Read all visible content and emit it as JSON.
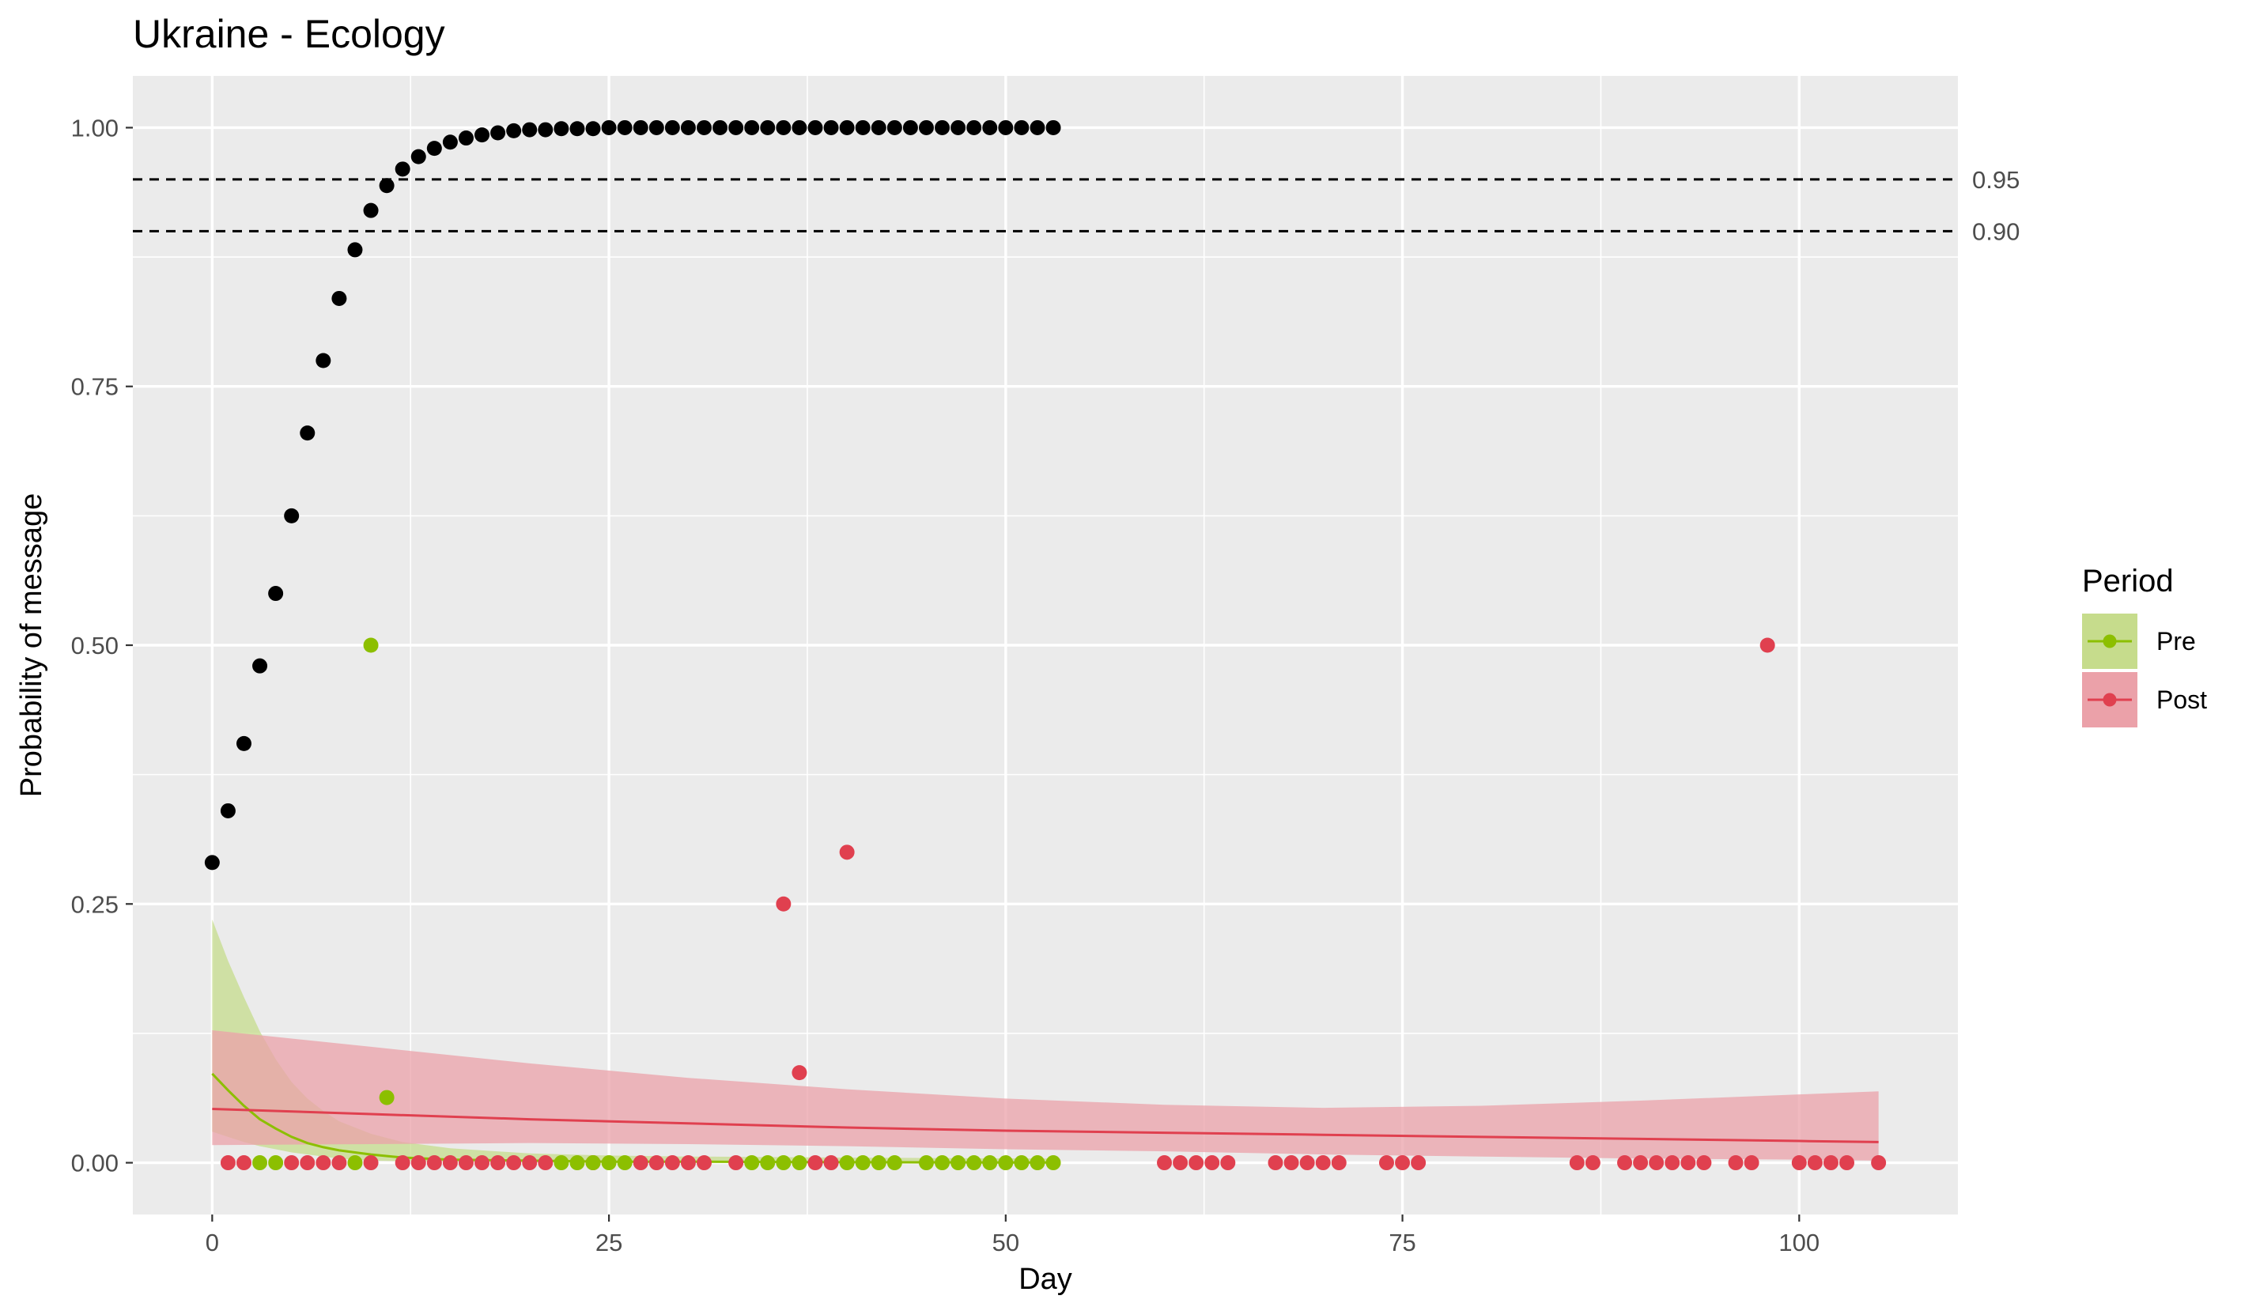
{
  "chart_data": {
    "type": "scatter",
    "title": "Ukraine - Ecology",
    "xlabel": "Day",
    "ylabel": "Probability of message",
    "xlim": [
      -5,
      110
    ],
    "ylim": [
      -0.05,
      1.05
    ],
    "x_ticks": [
      0,
      25,
      50,
      75,
      100
    ],
    "x_tick_labels": [
      "0",
      "25",
      "50",
      "75",
      "100"
    ],
    "y_ticks": [
      0,
      0.25,
      0.5,
      0.75,
      1.0
    ],
    "y_tick_labels": [
      "0.00",
      "0.25",
      "0.50",
      "0.75",
      "1.00"
    ],
    "grid": true,
    "colors": {
      "panel": "#ebebeb",
      "grid": "#ffffff",
      "cumulative": "#000000",
      "pre": "#8cbf00",
      "pre_band": "#c6dc8c",
      "post": "#e0404f",
      "post_band": "#eba1a9"
    },
    "reference_lines": [
      {
        "y": 0.95,
        "label": "0.95"
      },
      {
        "y": 0.9,
        "label": "0.90"
      }
    ],
    "legend": {
      "title": "Period",
      "position": "right",
      "entries": [
        {
          "label": "Pre",
          "color_key": "pre"
        },
        {
          "label": "Post",
          "color_key": "post"
        }
      ]
    },
    "series": [
      {
        "kind": "cumulative-points",
        "x": [
          0,
          1,
          2,
          3,
          4,
          5,
          6,
          7,
          8,
          9,
          10,
          11,
          12,
          13,
          14,
          15,
          16,
          17,
          18,
          19,
          20,
          21,
          22,
          23,
          24,
          25,
          26,
          27,
          28,
          29,
          30,
          31,
          32,
          33,
          34,
          35,
          36,
          37,
          38,
          39,
          40,
          41,
          42,
          43,
          44,
          45,
          46,
          47,
          48,
          49,
          50,
          51,
          52,
          53
        ],
        "y": [
          0.29,
          0.34,
          0.405,
          0.48,
          0.55,
          0.625,
          0.705,
          0.775,
          0.835,
          0.882,
          0.92,
          0.944,
          0.96,
          0.972,
          0.98,
          0.986,
          0.99,
          0.993,
          0.995,
          0.997,
          0.998,
          0.998,
          0.999,
          0.999,
          0.999,
          1,
          1,
          1,
          1,
          1,
          1,
          1,
          1,
          1,
          1,
          1,
          1,
          1,
          1,
          1,
          1,
          1,
          1,
          1,
          1,
          1,
          1,
          1,
          1,
          1,
          1,
          1,
          1,
          1
        ]
      },
      {
        "name": "Pre",
        "kind": "points",
        "color_key": "pre",
        "x": [
          3,
          4,
          9,
          10,
          11,
          22,
          23,
          24,
          25,
          26,
          34,
          35,
          36,
          37,
          40,
          41,
          42,
          43,
          45,
          46,
          47,
          48,
          49,
          50,
          51,
          52,
          53
        ],
        "y": [
          0,
          0,
          0,
          0.5,
          0.063,
          0,
          0,
          0,
          0,
          0,
          0,
          0,
          0,
          0,
          0,
          0,
          0,
          0,
          0,
          0,
          0,
          0,
          0,
          0,
          0,
          0,
          0
        ]
      },
      {
        "name": "Post",
        "kind": "points",
        "color_key": "post",
        "x": [
          1,
          2,
          5,
          6,
          7,
          8,
          10,
          12,
          13,
          14,
          15,
          16,
          17,
          18,
          19,
          20,
          21,
          24,
          27,
          28,
          29,
          30,
          31,
          33,
          36,
          37,
          38,
          39,
          40,
          60,
          61,
          62,
          63,
          64,
          67,
          68,
          69,
          70,
          71,
          74,
          75,
          76,
          86,
          87,
          89,
          90,
          91,
          92,
          93,
          94,
          96,
          97,
          98,
          100,
          101,
          102,
          103,
          105
        ],
        "y": [
          0,
          0,
          0,
          0,
          0,
          0,
          0,
          0,
          0,
          0,
          0,
          0,
          0,
          0,
          0,
          0,
          0,
          0,
          0,
          0,
          0,
          0,
          0,
          0,
          0.25,
          0.087,
          0,
          0,
          0.3,
          0,
          0,
          0,
          0,
          0,
          0,
          0,
          0,
          0,
          0,
          0,
          0,
          0,
          0,
          0,
          0,
          0,
          0,
          0,
          0,
          0,
          0,
          0,
          0.5,
          0,
          0,
          0,
          0,
          0
        ]
      },
      {
        "name": "Pre",
        "kind": "fit",
        "color_key": "pre",
        "band_key": "pre_band",
        "x": [
          0,
          1,
          2,
          3,
          4,
          5,
          6,
          7,
          8,
          10,
          12,
          15,
          20,
          25,
          30,
          40,
          53
        ],
        "y": [
          0.086,
          0.07,
          0.055,
          0.042,
          0.033,
          0.025,
          0.019,
          0.015,
          0.012,
          0.008,
          0.005,
          0.003,
          0.002,
          0.001,
          0.001,
          0.0005,
          0.0002
        ],
        "lower": [
          0.03,
          0.025,
          0.02,
          0.016,
          0.013,
          0.01,
          0.008,
          0.006,
          0.004,
          0.002,
          0.0015,
          0.001,
          0.0005,
          0.0003,
          0.0002,
          0.0001,
          0
        ],
        "upper": [
          0.235,
          0.195,
          0.16,
          0.127,
          0.1,
          0.078,
          0.062,
          0.05,
          0.04,
          0.028,
          0.02,
          0.014,
          0.009,
          0.007,
          0.006,
          0.005,
          0.004
        ]
      },
      {
        "name": "Post",
        "kind": "fit",
        "color_key": "post",
        "band_key": "post_band",
        "x": [
          0,
          10,
          20,
          30,
          40,
          50,
          60,
          70,
          80,
          90,
          100,
          105
        ],
        "y": [
          0.052,
          0.047,
          0.042,
          0.038,
          0.034,
          0.031,
          0.029,
          0.027,
          0.025,
          0.023,
          0.021,
          0.02
        ],
        "lower": [
          0.017,
          0.018,
          0.019,
          0.018,
          0.016,
          0.013,
          0.011,
          0.008,
          0.006,
          0.004,
          0.003,
          0.002
        ],
        "upper": [
          0.128,
          0.112,
          0.096,
          0.082,
          0.071,
          0.062,
          0.056,
          0.053,
          0.055,
          0.06,
          0.066,
          0.069
        ]
      }
    ]
  }
}
